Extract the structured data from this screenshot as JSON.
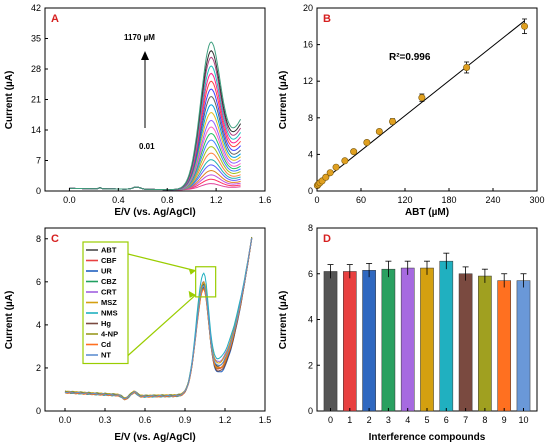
{
  "chart_data": [
    {
      "panel": "A",
      "type": "line",
      "xlabel": "E/V (vs. Ag/AgCl)",
      "ylabel": "Current (µA)",
      "xlim": [
        -0.2,
        1.6
      ],
      "ylim": [
        0,
        42
      ],
      "xticks": [
        0.0,
        0.4,
        0.8,
        1.2,
        1.6
      ],
      "yticks": [
        0,
        7,
        14,
        21,
        28,
        35,
        42
      ],
      "annotation_top": "1170 µM",
      "annotation_bottom": "0.01",
      "x_start": 0.0,
      "x_end": 1.4,
      "peak_x": 1.16,
      "peaks": [
        1.5,
        2.5,
        3.5,
        4.5,
        5.8,
        7.0,
        8.5,
        10.0,
        11.5,
        13.0,
        14.5,
        16.0,
        17.8,
        19.6,
        21.5,
        23.2,
        25.0,
        26.8,
        28.5,
        30.5,
        32.0,
        34.0
      ],
      "tail_ends": [
        0.8,
        1.2,
        1.6,
        2.0,
        2.5,
        3.0,
        3.5,
        4.2,
        4.8,
        5.4,
        6.0,
        6.8,
        7.5,
        8.2,
        9.0,
        10.0,
        11.0,
        12.0,
        13.0,
        14.0,
        15.0,
        16.0
      ],
      "colors": [
        "#e0409a",
        "#ff3060",
        "#c050e0",
        "#e08020",
        "#6060ff",
        "#20b0b0",
        "#ff8040",
        "#a0c020",
        "#4080ff",
        "#20c060",
        "#ff60c0",
        "#9060ff",
        "#e0c020",
        "#00a0e0",
        "#606060",
        "#4040ff",
        "#ff4040",
        "#ff2090",
        "#20c0c0",
        "#b04080",
        "#303030",
        "#40a080"
      ]
    },
    {
      "panel": "B",
      "type": "scatter",
      "xlabel": "ABT (µM)",
      "ylabel": "Current (µA)",
      "xlim": [
        0,
        300
      ],
      "ylim": [
        0,
        20
      ],
      "xticks": [
        0,
        60,
        120,
        180,
        240,
        300
      ],
      "yticks": [
        0,
        4,
        8,
        12,
        16,
        20
      ],
      "annotation": "R²=0.996",
      "fit_line": [
        [
          0,
          0.6
        ],
        [
          283,
          18.6
        ]
      ],
      "points": [
        {
          "x": 0.5,
          "y": 0.6,
          "err": 0.1
        },
        {
          "x": 2,
          "y": 0.75,
          "err": 0.1
        },
        {
          "x": 4,
          "y": 0.9,
          "err": 0.1
        },
        {
          "x": 7,
          "y": 1.1,
          "err": 0.15
        },
        {
          "x": 12,
          "y": 1.5,
          "err": 0.15
        },
        {
          "x": 18,
          "y": 2.0,
          "err": 0.15
        },
        {
          "x": 26,
          "y": 2.6,
          "err": 0.2
        },
        {
          "x": 38,
          "y": 3.3,
          "err": 0.2
        },
        {
          "x": 50,
          "y": 4.3,
          "err": 0.2
        },
        {
          "x": 68,
          "y": 5.3,
          "err": 0.2
        },
        {
          "x": 85,
          "y": 6.5,
          "err": 0.2
        },
        {
          "x": 103,
          "y": 7.6,
          "err": 0.3
        },
        {
          "x": 143,
          "y": 10.2,
          "err": 0.4
        },
        {
          "x": 204,
          "y": 13.5,
          "err": 0.6
        },
        {
          "x": 283,
          "y": 18.0,
          "err": 0.8
        }
      ]
    },
    {
      "panel": "C",
      "type": "line",
      "xlabel": "E/V (vs. Ag/AgCl)",
      "ylabel": "Current (µA)",
      "xlim": [
        -0.15,
        1.5
      ],
      "ylim": [
        0,
        8.5
      ],
      "xticks": [
        0.0,
        0.3,
        0.6,
        0.9,
        1.2,
        1.5
      ],
      "yticks": [
        0,
        2,
        4,
        6,
        8
      ],
      "x_start": 0.0,
      "x_end": 1.4,
      "legend": [
        "ABT",
        "CBF",
        "UR",
        "CBZ",
        "CRT",
        "MSZ",
        "NMS",
        "Hg",
        "4-NP",
        "Cd",
        "NT"
      ],
      "colors": [
        "#4a4a4a",
        "#e84040",
        "#2060c0",
        "#20a060",
        "#a060e0",
        "#d4a010",
        "#20b0c0",
        "#7a4a40",
        "#9a9a20",
        "#ff7020",
        "#6090d0"
      ],
      "peaks": [
        6.0,
        5.9,
        5.85,
        5.95,
        6.1,
        6.05,
        6.5,
        5.8,
        5.7,
        5.75,
        5.9
      ],
      "valleys": [
        2.2,
        2.0,
        1.8,
        2.1,
        2.4,
        2.3,
        2.6,
        1.9,
        2.0,
        2.1,
        2.2
      ],
      "peak_x": 1.04,
      "end_value": 8.0,
      "zoom_box": {
        "x0": 0.98,
        "x1": 1.13,
        "y0": 5.3,
        "y1": 6.7
      }
    },
    {
      "panel": "D",
      "type": "bar",
      "xlabel": "Interference compounds",
      "ylabel": "Current (µA)",
      "ylim": [
        0,
        8
      ],
      "yticks": [
        0,
        2,
        4,
        6,
        8
      ],
      "categories": [
        "0",
        "1",
        "2",
        "3",
        "4",
        "5",
        "6",
        "7",
        "8",
        "9",
        "10"
      ],
      "values": [
        6.1,
        6.1,
        6.15,
        6.2,
        6.25,
        6.25,
        6.55,
        6.0,
        5.9,
        5.7,
        5.7
      ],
      "errors": [
        0.3,
        0.3,
        0.3,
        0.35,
        0.3,
        0.3,
        0.35,
        0.3,
        0.3,
        0.3,
        0.3
      ],
      "colors": [
        "#555555",
        "#e84040",
        "#2f68c0",
        "#2aa060",
        "#a66ae0",
        "#d4a010",
        "#20b0c0",
        "#7a4a40",
        "#a0a020",
        "#ff7020",
        "#6a98d8"
      ]
    }
  ]
}
